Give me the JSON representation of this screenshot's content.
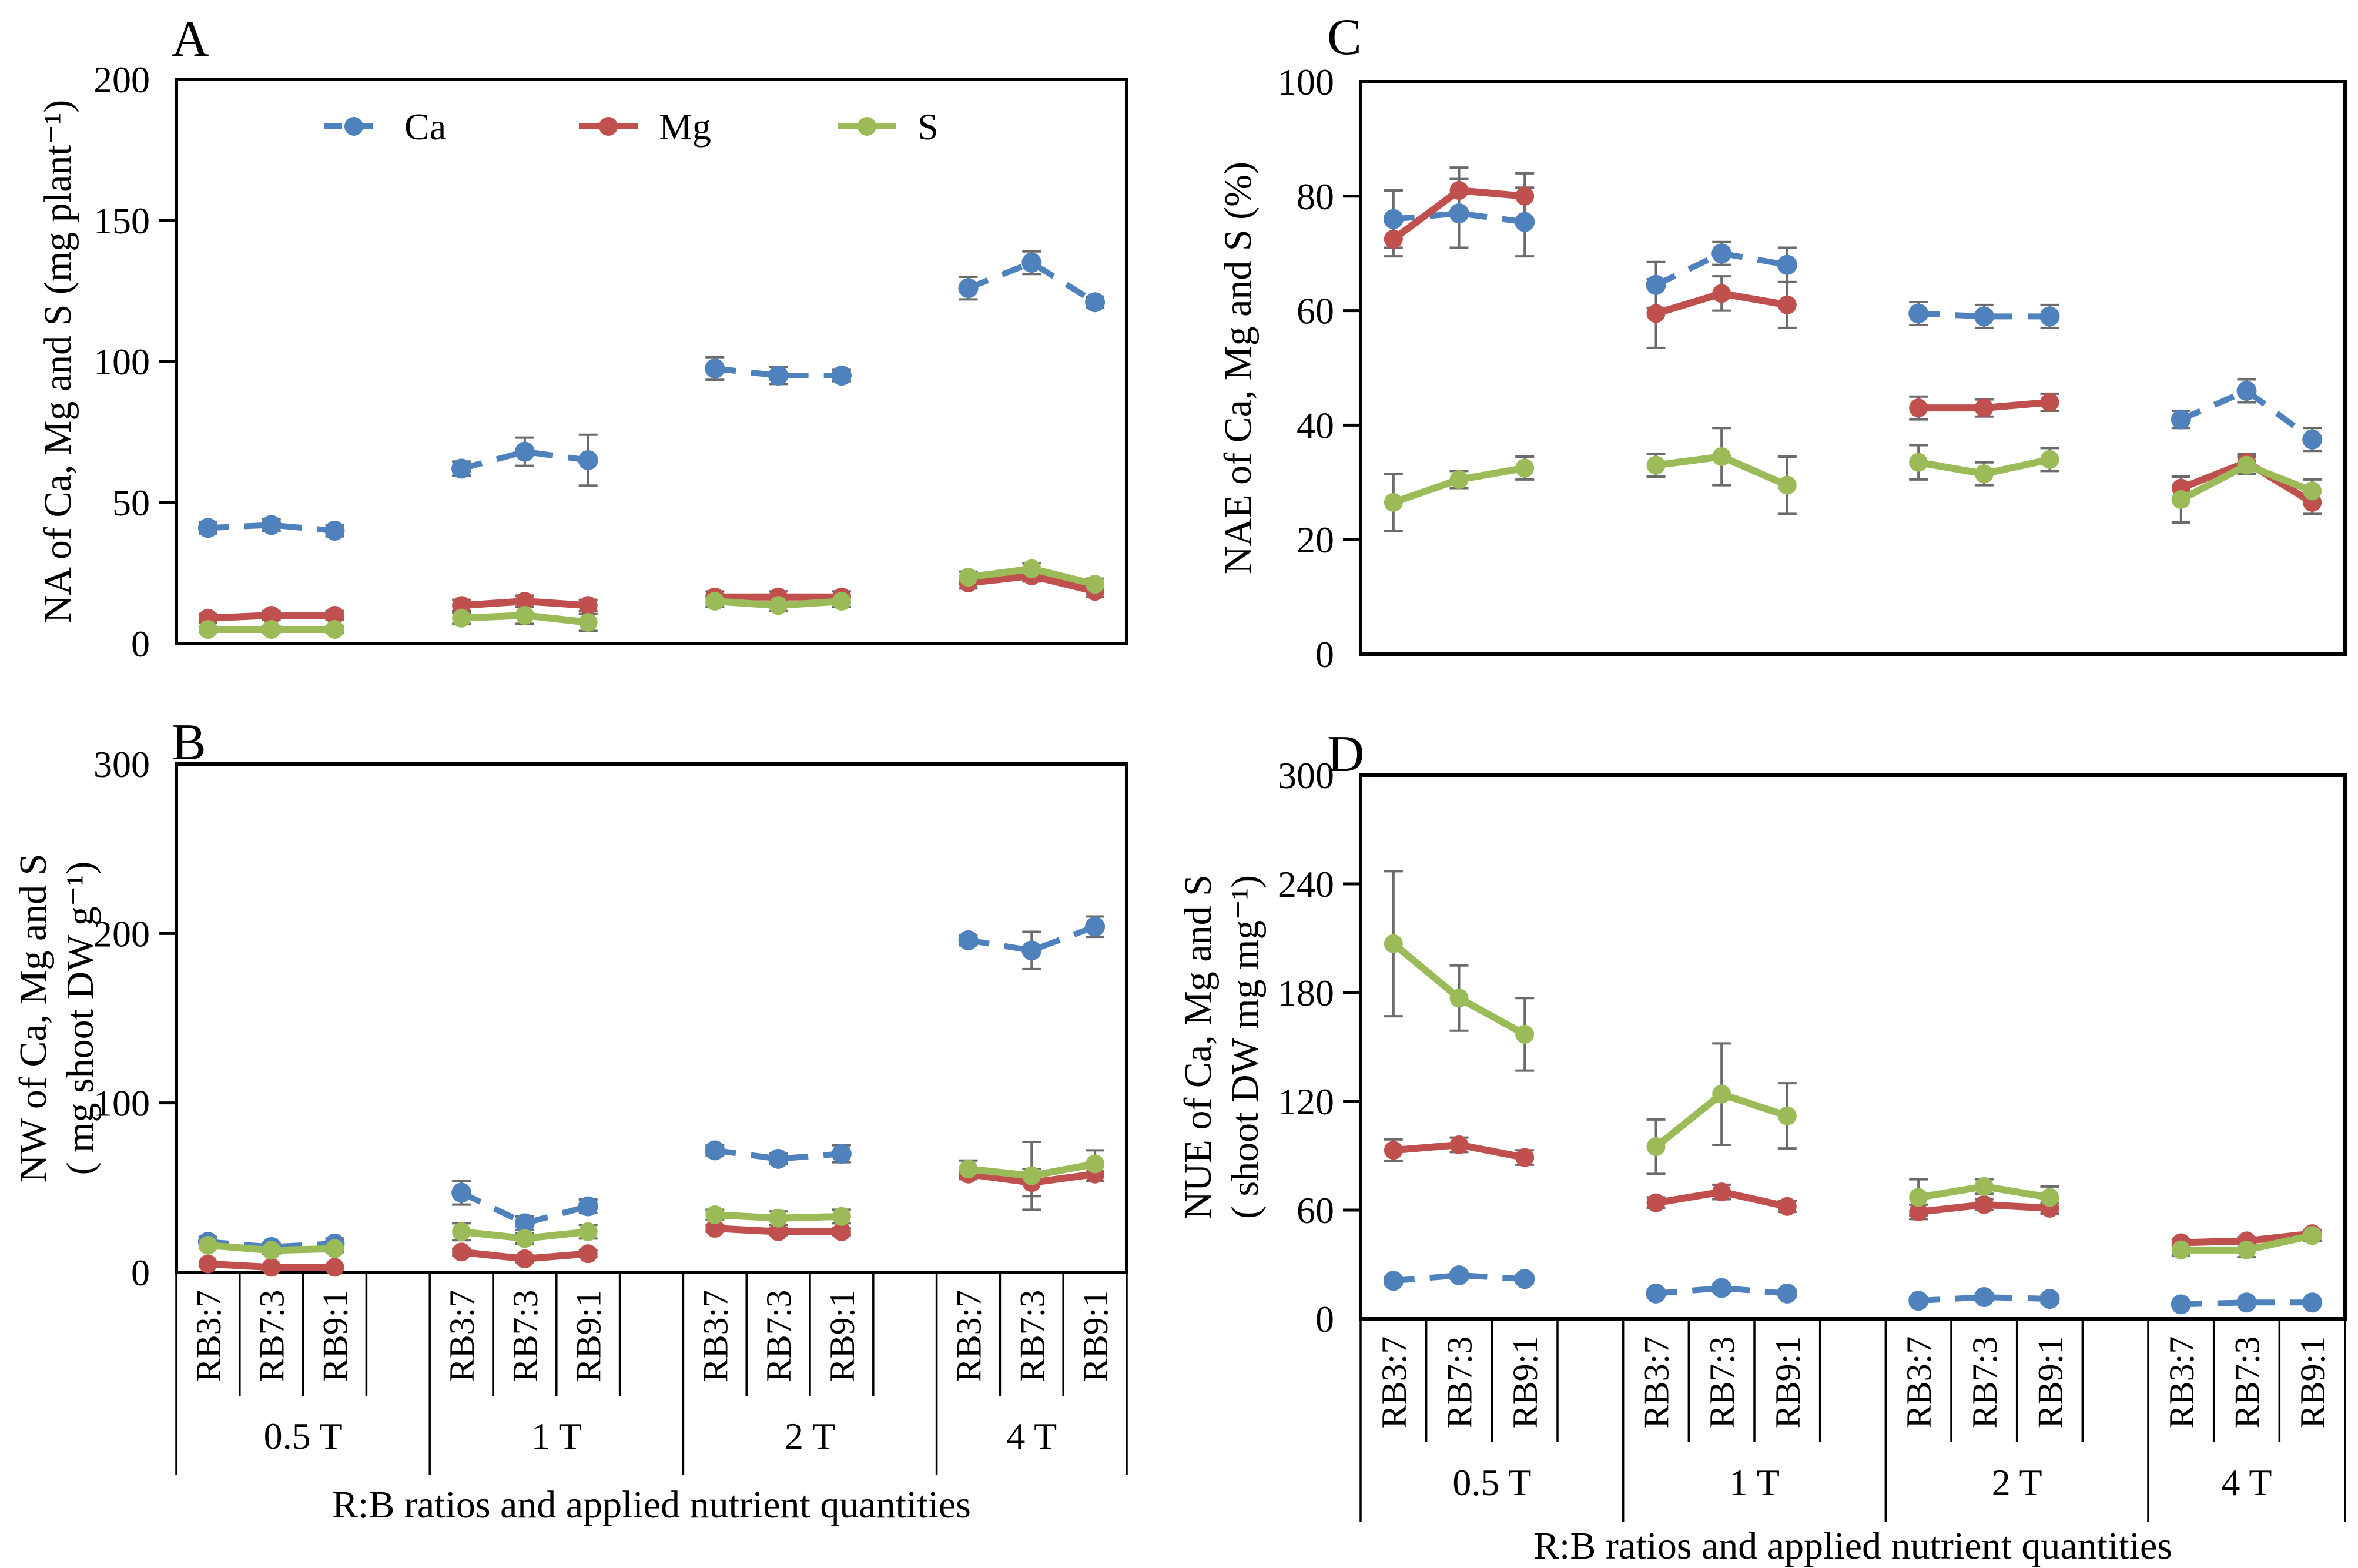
{
  "figure": {
    "x_axis_title": "R:B ratios and applied nutrient quantities",
    "groups": [
      "0.5 T",
      "1 T",
      "2 T",
      "4 T"
    ],
    "categories": [
      "RB3:7",
      "RB7:3",
      "RB9:1"
    ],
    "legend": [
      {
        "name": "Ca",
        "color": "#4f81bd",
        "dashed": true
      },
      {
        "name": "Mg",
        "color": "#c0504d",
        "dashed": false
      },
      {
        "name": "S",
        "color": "#9bbb59",
        "dashed": false
      }
    ],
    "colors": {
      "axis": "#000000",
      "error_bar": "#6b6b6b",
      "background": "#ffffff"
    }
  },
  "chart_data": [
    {
      "id": "A",
      "type": "line",
      "panel_label": "A",
      "ylabel_lines": [
        "NA of Ca, Mg and S  (mg plant⁻¹)"
      ],
      "ylim": [
        0,
        200
      ],
      "yticks": [
        0,
        50,
        100,
        150,
        200
      ],
      "x_categories": [
        "RB3:7",
        "RB7:3",
        "RB9:1"
      ],
      "x_groups": [
        "0.5 T",
        "1 T",
        "2 T",
        "4 T"
      ],
      "has_legend": true,
      "has_x_labels": false,
      "series": [
        {
          "name": "Ca",
          "dashed": true,
          "values": [
            41,
            42,
            40,
            62,
            68,
            65,
            97.5,
            95,
            95,
            126,
            135,
            121
          ],
          "errors": [
            2,
            2,
            2,
            2.5,
            5,
            9,
            4,
            3,
            2,
            4,
            4,
            2
          ]
        },
        {
          "name": "Mg",
          "dashed": false,
          "values": [
            9,
            10,
            10,
            13.5,
            15,
            13.5,
            16.5,
            16.5,
            16.5,
            21.5,
            24,
            18.5
          ],
          "errors": [
            1.5,
            1.5,
            1.5,
            2,
            2,
            2,
            2,
            2,
            2,
            2,
            2,
            2
          ]
        },
        {
          "name": "S",
          "dashed": false,
          "values": [
            5,
            5,
            5,
            9,
            10,
            7.5,
            15,
            13.5,
            15,
            23.5,
            26.5,
            21
          ],
          "errors": [
            1,
            1,
            1,
            2,
            3,
            3,
            2,
            2,
            2,
            2,
            2,
            2
          ]
        }
      ]
    },
    {
      "id": "B",
      "type": "line",
      "panel_label": "B",
      "ylabel_lines": [
        "NW of Ca, Mg and S",
        "( mg shoot DW g⁻¹)"
      ],
      "ylim": [
        0,
        300
      ],
      "yticks": [
        0,
        100,
        200,
        300
      ],
      "x_categories": [
        "RB3:7",
        "RB7:3",
        "RB9:1"
      ],
      "x_groups": [
        "0.5 T",
        "1 T",
        "2 T",
        "4 T"
      ],
      "has_legend": false,
      "has_x_labels": true,
      "series": [
        {
          "name": "Ca",
          "dashed": true,
          "values": [
            18,
            15,
            17,
            47,
            29,
            39,
            72,
            67,
            70,
            196,
            190,
            204
          ],
          "errors": [
            3,
            2,
            3,
            7,
            4,
            4,
            3,
            3,
            5,
            3,
            11,
            6
          ]
        },
        {
          "name": "Mg",
          "dashed": false,
          "values": [
            5,
            3,
            3,
            12,
            8,
            11,
            26,
            24,
            24,
            58,
            53,
            58
          ],
          "errors": [
            1,
            1,
            1,
            2,
            2,
            2,
            2,
            2,
            2,
            3,
            8,
            4
          ]
        },
        {
          "name": "S",
          "dashed": false,
          "values": [
            16,
            13,
            14,
            24,
            20,
            24,
            34,
            32,
            33,
            61,
            57,
            64
          ],
          "errors": [
            2,
            2,
            2,
            5,
            3,
            4,
            3,
            4,
            4,
            5,
            20,
            8
          ]
        }
      ]
    },
    {
      "id": "C",
      "type": "line",
      "panel_label": "C",
      "ylabel_lines": [
        "NAE of  Ca, Mg and S (%)"
      ],
      "ylim": [
        0,
        100
      ],
      "yticks": [
        0,
        20,
        40,
        60,
        80,
        100
      ],
      "x_categories": [
        "RB3:7",
        "RB7:3",
        "RB9:1"
      ],
      "x_groups": [
        "0.5 T",
        "1 T",
        "2 T",
        "4 T"
      ],
      "has_legend": false,
      "has_x_labels": false,
      "series": [
        {
          "name": "Ca",
          "dashed": true,
          "values": [
            76,
            77,
            75.5,
            64.5,
            70,
            68,
            59.5,
            59,
            59,
            41,
            46,
            37.5
          ],
          "errors": [
            5,
            6,
            6,
            4,
            2,
            3,
            2,
            2,
            2,
            1.5,
            2,
            2
          ]
        },
        {
          "name": "Mg",
          "dashed": false,
          "values": [
            72.5,
            81,
            80,
            59.5,
            63,
            61,
            43,
            43,
            44,
            29,
            33.5,
            26.5
          ],
          "errors": [
            3,
            4,
            4,
            6,
            3,
            4,
            2,
            1.5,
            1.5,
            2,
            1.5,
            2
          ]
        },
        {
          "name": "S",
          "dashed": false,
          "values": [
            26.5,
            30.5,
            32.5,
            33,
            34.5,
            29.5,
            33.5,
            31.5,
            34,
            27,
            33,
            28.5
          ],
          "errors": [
            5,
            1.5,
            2,
            2,
            5,
            5,
            3,
            2,
            2,
            4,
            1.5,
            2
          ]
        }
      ]
    },
    {
      "id": "D",
      "type": "line",
      "panel_label": "D",
      "ylabel_lines": [
        "NUE of  Ca, Mg and S",
        "( shoot DW mg mg⁻¹)"
      ],
      "ylim": [
        0,
        300
      ],
      "yticks": [
        0,
        60,
        120,
        180,
        240,
        300
      ],
      "x_categories": [
        "RB3:7",
        "RB7:3",
        "RB9:1"
      ],
      "x_groups": [
        "0.5 T",
        "1 T",
        "2 T",
        "4 T"
      ],
      "has_legend": false,
      "has_x_labels": true,
      "series": [
        {
          "name": "Ca",
          "dashed": true,
          "values": [
            21,
            24,
            22,
            14,
            17,
            14,
            10,
            12,
            11,
            8,
            9,
            9
          ],
          "errors": [
            2,
            2,
            2,
            2,
            2,
            2,
            2,
            2,
            2,
            1,
            1,
            1
          ]
        },
        {
          "name": "Mg",
          "dashed": false,
          "values": [
            93,
            96,
            89,
            64,
            70,
            62,
            59,
            63,
            61,
            42,
            43,
            47
          ],
          "errors": [
            6,
            4,
            4,
            3,
            4,
            3,
            4,
            3,
            3,
            2,
            2,
            2
          ]
        },
        {
          "name": "S",
          "dashed": false,
          "values": [
            207,
            177,
            157,
            95,
            124,
            112,
            67,
            73,
            67,
            38,
            38,
            46
          ],
          "errors": [
            40,
            18,
            20,
            15,
            28,
            18,
            10,
            4,
            6,
            3,
            4,
            3
          ]
        }
      ]
    }
  ]
}
